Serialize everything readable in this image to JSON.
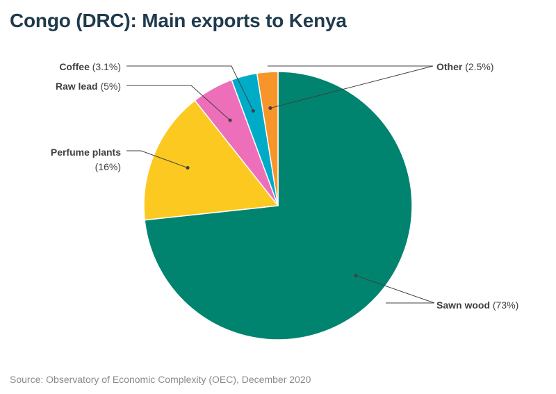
{
  "title": "Congo (DRC): Main exports to Kenya",
  "source": "Source: Observatory of Economic Complexity (OEC), December 2020",
  "chart_data": {
    "type": "pie",
    "slices": [
      {
        "name": "Sawn wood",
        "pct_label": "(73%)",
        "value": 73.0,
        "color": "#00836f"
      },
      {
        "name": "Perfume plants",
        "pct_label": "(16%)",
        "value": 16.0,
        "color": "#fcc920"
      },
      {
        "name": "Raw lead",
        "pct_label": "(5%)",
        "value": 5.0,
        "color": "#ee6fb9"
      },
      {
        "name": "Coffee",
        "pct_label": "(3.1%)",
        "value": 3.1,
        "color": "#00abc7"
      },
      {
        "name": "Other",
        "pct_label": "(2.5%)",
        "value": 2.5,
        "color": "#f7952b"
      }
    ]
  }
}
